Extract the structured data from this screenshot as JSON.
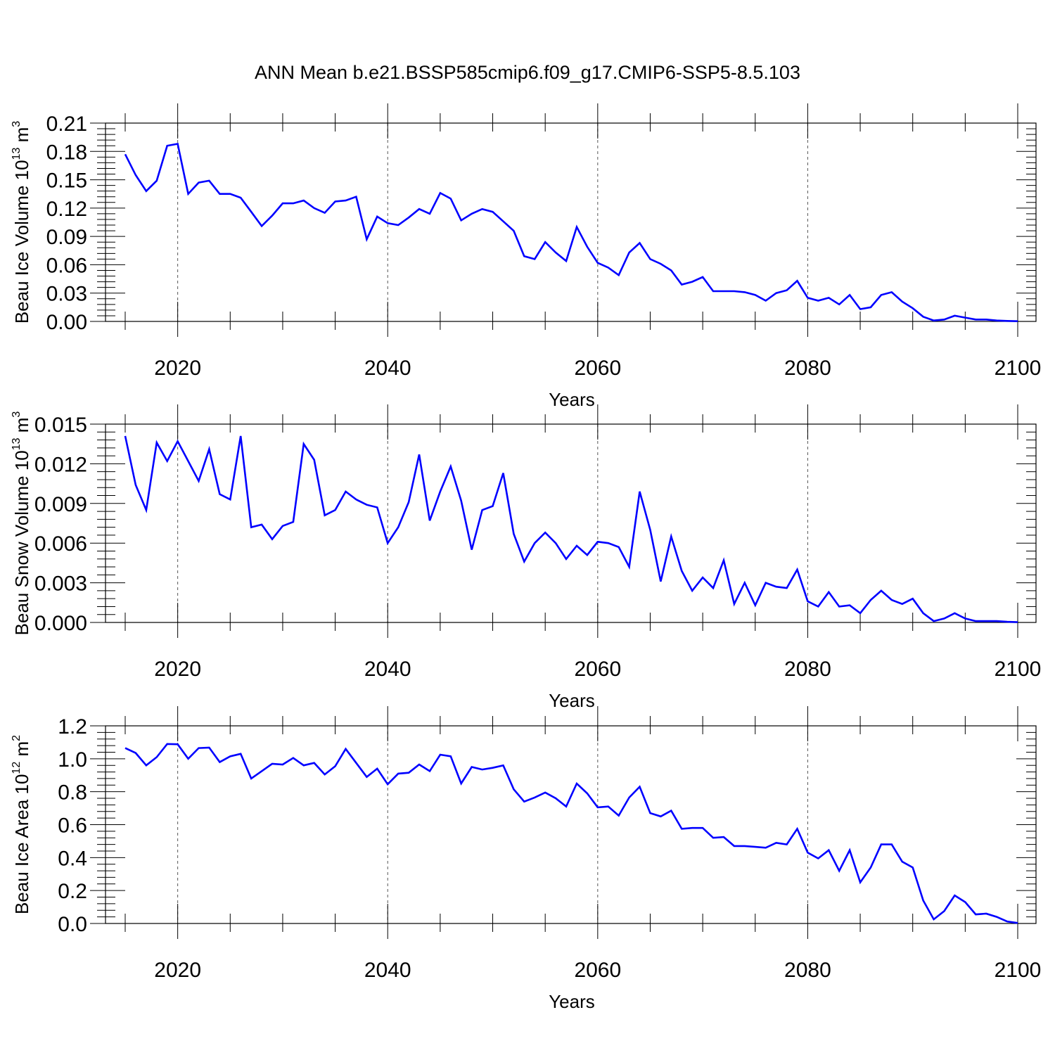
{
  "figure_title": "ANN Mean b.e21.BSSP585cmip6.f09_g17.CMIP6-SSP5-8.5.103",
  "colors": {
    "line": "#0000ff",
    "axis": "#000000",
    "grid": "#555555"
  },
  "chart_data": [
    {
      "type": "line",
      "xlabel": "Years",
      "ylabel": {
        "text": "Beau Ice Volume 10",
        "exp": "13",
        "unit": " m",
        "unit_exp": "3"
      },
      "xlim": [
        2015,
        2100
      ],
      "ylim": [
        0,
        0.21
      ],
      "xticks": [
        2020,
        2040,
        2060,
        2080,
        2100
      ],
      "xtick_labels": [
        "2020",
        "2040",
        "2060",
        "2080",
        "2100"
      ],
      "yticks": [
        0,
        0.03,
        0.06,
        0.09,
        0.12,
        0.15,
        0.18,
        0.21
      ],
      "ytick_labels": [
        "0.00",
        "0.03",
        "0.06",
        "0.09",
        "0.12",
        "0.15",
        "0.18",
        "0.21"
      ],
      "x_grid": "dashed vertical lines at major x ticks",
      "series": [
        {
          "x": [
            2015,
            2016,
            2017,
            2018,
            2019,
            2020,
            2021,
            2022,
            2023,
            2024,
            2025,
            2026,
            2027,
            2028,
            2029,
            2030,
            2031,
            2032,
            2033,
            2034,
            2035,
            2036,
            2037,
            2038,
            2039,
            2040,
            2041,
            2042,
            2043,
            2044,
            2045,
            2046,
            2047,
            2048,
            2049,
            2050,
            2051,
            2052,
            2053,
            2054,
            2055,
            2056,
            2057,
            2058,
            2059,
            2060,
            2061,
            2062,
            2063,
            2064,
            2065,
            2066,
            2067,
            2068,
            2069,
            2070,
            2071,
            2072,
            2073,
            2074,
            2075,
            2076,
            2077,
            2078,
            2079,
            2080,
            2081,
            2082,
            2083,
            2084,
            2085,
            2086,
            2087,
            2088,
            2089,
            2090,
            2091,
            2092,
            2093,
            2094,
            2095,
            2096,
            2097,
            2098,
            2099,
            2100
          ],
          "y": [
            0.177,
            0.155,
            0.138,
            0.149,
            0.186,
            0.188,
            0.135,
            0.147,
            0.149,
            0.135,
            0.135,
            0.131,
            0.116,
            0.101,
            0.112,
            0.125,
            0.125,
            0.128,
            0.12,
            0.115,
            0.127,
            0.128,
            0.132,
            0.087,
            0.111,
            0.104,
            0.102,
            0.11,
            0.119,
            0.114,
            0.136,
            0.13,
            0.107,
            0.114,
            0.119,
            0.116,
            0.106,
            0.096,
            0.069,
            0.066,
            0.084,
            0.073,
            0.064,
            0.1,
            0.079,
            0.062,
            0.057,
            0.049,
            0.073,
            0.083,
            0.066,
            0.061,
            0.054,
            0.039,
            0.042,
            0.047,
            0.032,
            0.032,
            0.032,
            0.031,
            0.028,
            0.022,
            0.03,
            0.033,
            0.043,
            0.025,
            0.022,
            0.025,
            0.018,
            0.028,
            0.013,
            0.015,
            0.028,
            0.031,
            0.021,
            0.014,
            0.005,
            0.001,
            0.002,
            0.006,
            0.004,
            0.002,
            0.002,
            0.001,
            0.0005,
            0.0002
          ]
        }
      ]
    },
    {
      "type": "line",
      "xlabel": "Years",
      "ylabel": {
        "text": "Beau Snow Volume 10",
        "exp": "13",
        "unit": " m",
        "unit_exp": "3"
      },
      "xlim": [
        2015,
        2100
      ],
      "ylim": [
        0,
        0.015
      ],
      "xticks": [
        2020,
        2040,
        2060,
        2080,
        2100
      ],
      "xtick_labels": [
        "2020",
        "2040",
        "2060",
        "2080",
        "2100"
      ],
      "yticks": [
        0,
        0.003,
        0.006,
        0.009,
        0.012,
        0.015
      ],
      "ytick_labels": [
        "0.000",
        "0.003",
        "0.006",
        "0.009",
        "0.012",
        "0.015"
      ],
      "x_grid": "dashed vertical lines at major x ticks",
      "series": [
        {
          "x": [
            2015,
            2016,
            2017,
            2018,
            2019,
            2020,
            2021,
            2022,
            2023,
            2024,
            2025,
            2026,
            2027,
            2028,
            2029,
            2030,
            2031,
            2032,
            2033,
            2034,
            2035,
            2036,
            2037,
            2038,
            2039,
            2040,
            2041,
            2042,
            2043,
            2044,
            2045,
            2046,
            2047,
            2048,
            2049,
            2050,
            2051,
            2052,
            2053,
            2054,
            2055,
            2056,
            2057,
            2058,
            2059,
            2060,
            2061,
            2062,
            2063,
            2064,
            2065,
            2066,
            2067,
            2068,
            2069,
            2070,
            2071,
            2072,
            2073,
            2074,
            2075,
            2076,
            2077,
            2078,
            2079,
            2080,
            2081,
            2082,
            2083,
            2084,
            2085,
            2086,
            2087,
            2088,
            2089,
            2090,
            2091,
            2092,
            2093,
            2094,
            2095,
            2096,
            2097,
            2098,
            2099,
            2100
          ],
          "y": [
            0.0141,
            0.0104,
            0.0085,
            0.0136,
            0.0122,
            0.0137,
            0.0122,
            0.0107,
            0.0131,
            0.0097,
            0.0093,
            0.0141,
            0.0072,
            0.0074,
            0.0063,
            0.0073,
            0.0076,
            0.0135,
            0.0123,
            0.0081,
            0.0085,
            0.0099,
            0.0093,
            0.0089,
            0.0087,
            0.006,
            0.0072,
            0.0091,
            0.0127,
            0.0077,
            0.0099,
            0.0118,
            0.0092,
            0.0055,
            0.0085,
            0.0088,
            0.0113,
            0.0067,
            0.0046,
            0.006,
            0.0068,
            0.006,
            0.0048,
            0.0058,
            0.0051,
            0.0061,
            0.006,
            0.0057,
            0.0042,
            0.0099,
            0.007,
            0.0031,
            0.0065,
            0.0039,
            0.0024,
            0.0034,
            0.0026,
            0.0047,
            0.0014,
            0.003,
            0.0013,
            0.003,
            0.0027,
            0.0026,
            0.004,
            0.0016,
            0.0012,
            0.0023,
            0.0012,
            0.0013,
            0.0007,
            0.0017,
            0.0024,
            0.0017,
            0.0014,
            0.0018,
            0.0007,
            0.0001,
            0.0003,
            0.0007,
            0.0003,
            0.0001,
            0.0001,
            0.0001,
            5e-05,
            2e-05
          ]
        }
      ]
    },
    {
      "type": "line",
      "xlabel": "Years",
      "ylabel": {
        "text": "Beau Ice Area 10",
        "exp": "12",
        "unit": " m",
        "unit_exp": "2"
      },
      "xlim": [
        2015,
        2100
      ],
      "ylim": [
        0,
        1.2
      ],
      "xticks": [
        2020,
        2040,
        2060,
        2080,
        2100
      ],
      "xtick_labels": [
        "2020",
        "2040",
        "2060",
        "2080",
        "2100"
      ],
      "yticks": [
        0,
        0.2,
        0.4,
        0.6,
        0.8,
        1.0,
        1.2
      ],
      "ytick_labels": [
        "0.0",
        "0.2",
        "0.4",
        "0.6",
        "0.8",
        "1.0",
        "1.2"
      ],
      "x_grid": "dashed vertical lines at major x ticks",
      "series": [
        {
          "x": [
            2015,
            2016,
            2017,
            2018,
            2019,
            2020,
            2021,
            2022,
            2023,
            2024,
            2025,
            2026,
            2027,
            2028,
            2029,
            2030,
            2031,
            2032,
            2033,
            2034,
            2035,
            2036,
            2037,
            2038,
            2039,
            2040,
            2041,
            2042,
            2043,
            2044,
            2045,
            2046,
            2047,
            2048,
            2049,
            2050,
            2051,
            2052,
            2053,
            2054,
            2055,
            2056,
            2057,
            2058,
            2059,
            2060,
            2061,
            2062,
            2063,
            2064,
            2065,
            2066,
            2067,
            2068,
            2069,
            2070,
            2071,
            2072,
            2073,
            2074,
            2075,
            2076,
            2077,
            2078,
            2079,
            2080,
            2081,
            2082,
            2083,
            2084,
            2085,
            2086,
            2087,
            2088,
            2089,
            2090,
            2091,
            2092,
            2093,
            2094,
            2095,
            2096,
            2097,
            2098,
            2099,
            2100
          ],
          "y": [
            1.065,
            1.035,
            0.96,
            1.01,
            1.09,
            1.088,
            1.0,
            1.065,
            1.068,
            0.98,
            1.015,
            1.03,
            0.88,
            0.925,
            0.97,
            0.965,
            1.005,
            0.96,
            0.975,
            0.905,
            0.955,
            1.06,
            0.975,
            0.89,
            0.94,
            0.845,
            0.91,
            0.915,
            0.965,
            0.925,
            1.025,
            1.015,
            0.85,
            0.95,
            0.935,
            0.945,
            0.96,
            0.815,
            0.74,
            0.765,
            0.795,
            0.76,
            0.71,
            0.85,
            0.79,
            0.705,
            0.71,
            0.655,
            0.765,
            0.83,
            0.67,
            0.65,
            0.685,
            0.575,
            0.58,
            0.58,
            0.52,
            0.525,
            0.47,
            0.47,
            0.465,
            0.46,
            0.49,
            0.48,
            0.575,
            0.43,
            0.395,
            0.445,
            0.32,
            0.445,
            0.25,
            0.34,
            0.48,
            0.48,
            0.375,
            0.34,
            0.14,
            0.025,
            0.075,
            0.17,
            0.13,
            0.055,
            0.06,
            0.04,
            0.012,
            0.003
          ]
        }
      ]
    }
  ]
}
